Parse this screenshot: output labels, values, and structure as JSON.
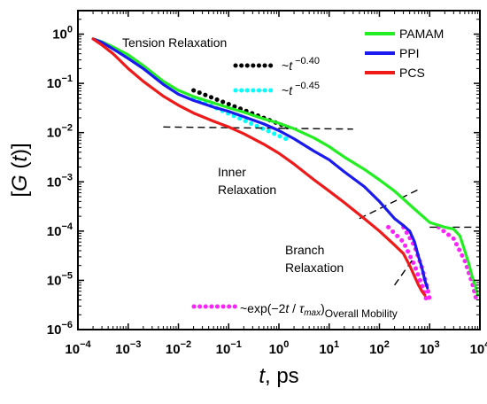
{
  "chart_data": {
    "type": "line",
    "x_scale": "log",
    "y_scale": "log",
    "xlim": [
      0.0001,
      10000
    ],
    "ylim": [
      1e-06,
      3
    ],
    "x_ticks": [
      {
        "base": "10",
        "exp": "−4",
        "value": 0.0001
      },
      {
        "base": "10",
        "exp": "−3",
        "value": 0.001
      },
      {
        "base": "10",
        "exp": "−2",
        "value": 0.01
      },
      {
        "base": "10",
        "exp": "−1",
        "value": 0.1
      },
      {
        "base": "10",
        "exp": "0",
        "value": 1
      },
      {
        "base": "10",
        "exp": "1",
        "value": 10
      },
      {
        "base": "10",
        "exp": "2",
        "value": 100
      },
      {
        "base": "10",
        "exp": "3",
        "value": 1000
      },
      {
        "base": "10",
        "exp": "4",
        "value": 10000
      }
    ],
    "y_ticks": [
      {
        "base": "10",
        "exp": "−6",
        "value": 1e-06
      },
      {
        "base": "10",
        "exp": "−5",
        "value": 1e-05
      },
      {
        "base": "10",
        "exp": "−4",
        "value": 0.0001
      },
      {
        "base": "10",
        "exp": "−3",
        "value": 0.001
      },
      {
        "base": "10",
        "exp": "−2",
        "value": 0.01
      },
      {
        "base": "10",
        "exp": "−1",
        "value": 0.1
      },
      {
        "base": "10",
        "exp": "0",
        "value": 1
      }
    ],
    "xlabel": {
      "var": "t",
      "rest": ", ps"
    },
    "ylabel": {
      "open": "[",
      "g": "G",
      "paren_open": " (",
      "var": "t",
      "paren_close": ")",
      "close": "]"
    },
    "legend_position": "top-right",
    "series": [
      {
        "name": "PAMAM",
        "color": "#22ee22",
        "x": [
          0.0002,
          0.0003,
          0.0005,
          0.001,
          0.002,
          0.005,
          0.01,
          0.02,
          0.05,
          0.1,
          0.2,
          0.5,
          1,
          2,
          5,
          10,
          20,
          50,
          100,
          200,
          500,
          1000,
          2000,
          3000,
          4000,
          5000,
          6000,
          7000,
          8000,
          9000
        ],
        "y": [
          0.8,
          0.7,
          0.55,
          0.38,
          0.23,
          0.11,
          0.072,
          0.054,
          0.04,
          0.032,
          0.026,
          0.019,
          0.0155,
          0.012,
          0.0078,
          0.0052,
          0.0032,
          0.0018,
          0.0011,
          0.00065,
          0.00028,
          0.00015,
          0.00012,
          0.00011,
          8e-05,
          4e-05,
          2.2e-05,
          1.2e-05,
          8e-06,
          5e-06
        ]
      },
      {
        "name": "PPI",
        "color": "#1a1aee",
        "x": [
          0.0002,
          0.0003,
          0.0005,
          0.001,
          0.002,
          0.005,
          0.01,
          0.02,
          0.05,
          0.1,
          0.2,
          0.5,
          1,
          2,
          5,
          10,
          20,
          50,
          100,
          200,
          300,
          400,
          500,
          600,
          700,
          800,
          900
        ],
        "y": [
          0.8,
          0.68,
          0.5,
          0.32,
          0.2,
          0.095,
          0.06,
          0.045,
          0.033,
          0.027,
          0.021,
          0.015,
          0.011,
          0.0075,
          0.0042,
          0.0028,
          0.0016,
          0.0008,
          0.0004,
          0.00018,
          0.00013,
          0.0001,
          6e-05,
          3e-05,
          1.8e-05,
          1e-05,
          7e-06
        ]
      },
      {
        "name": "PCS",
        "color": "#ee1a1a",
        "x": [
          0.0002,
          0.0003,
          0.0005,
          0.001,
          0.002,
          0.005,
          0.01,
          0.02,
          0.05,
          0.1,
          0.2,
          0.5,
          1,
          2,
          5,
          10,
          20,
          50,
          100,
          200,
          300,
          400,
          500,
          600,
          700,
          800
        ],
        "y": [
          0.8,
          0.6,
          0.4,
          0.2,
          0.11,
          0.055,
          0.036,
          0.025,
          0.017,
          0.013,
          0.0095,
          0.0058,
          0.0038,
          0.0023,
          0.0011,
          0.00065,
          0.00038,
          0.00018,
          0.0001,
          5.2e-05,
          3.5e-05,
          2e-05,
          1.2e-05,
          8e-06,
          6e-06,
          5e-06
        ]
      }
    ],
    "fits": [
      {
        "name": "t-0.40",
        "color": "#000000",
        "x": [
          0.02,
          1.5
        ],
        "y": [
          0.072,
          0.0128
        ]
      },
      {
        "name": "t-0.45",
        "color": "#00ffff",
        "x": [
          0.02,
          1.5
        ],
        "y": [
          0.05,
          0.0072
        ]
      },
      {
        "name": "exp-PCS",
        "color": "#ff22ff",
        "x": [
          150,
          300,
          500,
          700,
          900
        ],
        "y": [
          0.00012,
          6e-05,
          2e-05,
          8e-06,
          3.5e-06
        ]
      },
      {
        "name": "exp-PPI",
        "color": "#ff22ff",
        "x": [
          300,
          500,
          700,
          900,
          1000
        ],
        "y": [
          0.00012,
          5e-05,
          1.8e-05,
          7e-06,
          4e-06
        ]
      },
      {
        "name": "exp-PAMAM",
        "color": "#ff22ff",
        "x": [
          1500,
          3000,
          5000,
          7000,
          8500
        ],
        "y": [
          0.00012,
          7e-05,
          2.5e-05,
          9e-06,
          4e-06
        ]
      }
    ],
    "guides": [
      {
        "x": [
          0.005,
          30
        ],
        "y": [
          0.013,
          0.0118
        ]
      },
      {
        "x": [
          40,
          600
        ],
        "y": [
          0.00018,
          0.0007
        ]
      },
      {
        "x": [
          200,
          500
        ],
        "y": [
          8e-06,
          3e-05
        ]
      },
      {
        "x": [
          1000,
          10000
        ],
        "y": [
          0.00012,
          0.00012
        ]
      }
    ],
    "annotations": {
      "tension": "Tension Relaxation",
      "inner_1": "Inner",
      "inner_2": "Relaxation",
      "branch_1": "Branch",
      "branch_2": "Relaxation",
      "fit1_prefix": "~",
      "fit1_var": "t",
      "fit1_exp": " −0.40",
      "fit2_prefix": "~",
      "fit2_var": "t",
      "fit2_exp": " −0.45",
      "exp_prefix": "~exp(−2",
      "exp_var": "t",
      "exp_slash": " / ",
      "exp_tau": "τ",
      "exp_sub": "max",
      "exp_close": ")",
      "overall": "Overall Mobility"
    }
  }
}
